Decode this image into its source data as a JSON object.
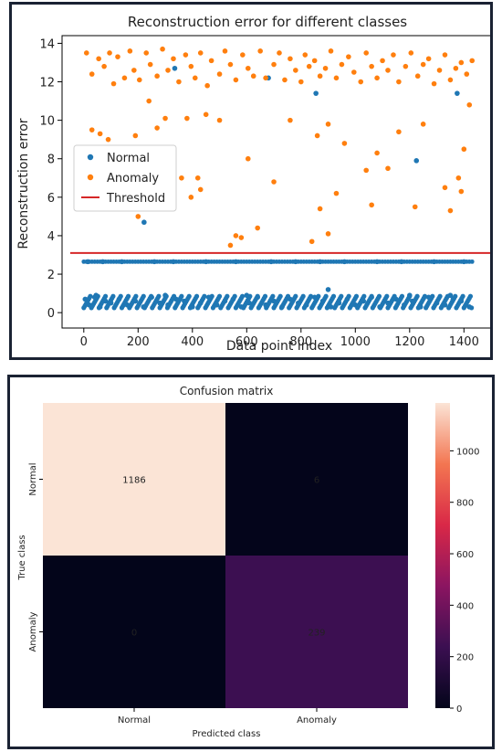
{
  "chart_data": [
    {
      "type": "scatter",
      "title": "Reconstruction error for different classes",
      "xlabel": "Data point index",
      "ylabel": "Reconstruction error",
      "xlim": [
        -80,
        1520
      ],
      "ylim": [
        -0.8,
        14.4
      ],
      "xticks": [
        "0",
        "200",
        "400",
        "600",
        "800",
        "1000",
        "1200",
        "1400"
      ],
      "yticks": [
        "0",
        "2",
        "4",
        "6",
        "8",
        "10",
        "12",
        "14"
      ],
      "grid": false,
      "legend_position": "center-left",
      "legend": [
        "Normal",
        "Anomaly",
        "Threshold"
      ],
      "colors": {
        "normal": "#1f77b4",
        "anomaly": "#ff7f0e",
        "threshold": "#d62728"
      },
      "threshold": {
        "name": "Threshold",
        "value": 3.1,
        "x_range": [
          -50,
          1500
        ]
      },
      "series": [
        {
          "name": "Normal",
          "x": [
            5,
            20,
            40,
            60,
            80,
            100,
            130,
            160,
            190,
            220,
            250,
            280,
            310,
            340,
            370,
            400,
            430,
            460,
            490,
            520,
            550,
            580,
            610,
            640,
            670,
            700,
            730,
            760,
            790,
            820,
            850,
            880,
            910,
            940,
            970,
            1000,
            1030,
            1060,
            1090,
            1120,
            1150,
            1180,
            1210,
            1240,
            1270,
            1300,
            1330,
            1360,
            1390,
            1420,
            15,
            70,
            140,
            260,
            330,
            450,
            560,
            690,
            780,
            870,
            960,
            1080,
            1170,
            1290,
            1400,
            45,
            300,
            600,
            900,
            1200,
            1350,
            222,
            335,
            680,
            855,
            1225,
            1375
          ],
          "y": [
            0.7,
            0.4,
            0.8,
            0.3,
            0.6,
            0.5,
            0.7,
            0.4,
            0.6,
            0.3,
            0.8,
            0.5,
            0.4,
            0.7,
            0.6,
            0.3,
            0.5,
            0.8,
            0.4,
            0.6,
            0.7,
            0.3,
            0.5,
            0.8,
            0.4,
            0.6,
            0.3,
            0.7,
            0.5,
            0.4,
            0.8,
            0.6,
            0.3,
            0.5,
            0.7,
            0.4,
            0.6,
            0.8,
            0.3,
            0.5,
            0.7,
            0.4,
            0.6,
            0.3,
            0.8,
            0.5,
            0.4,
            0.7,
            0.6,
            0.3,
            2.65,
            2.65,
            2.65,
            2.65,
            2.65,
            2.65,
            2.65,
            2.65,
            2.65,
            2.65,
            2.65,
            2.65,
            2.65,
            2.65,
            2.65,
            0.9,
            0.9,
            0.9,
            1.2,
            0.9,
            0.9,
            4.7,
            12.7,
            12.2,
            11.4,
            7.9,
            11.4
          ]
        },
        {
          "name": "Anomaly",
          "x": [
            10,
            30,
            55,
            75,
            95,
            110,
            125,
            150,
            170,
            185,
            205,
            230,
            245,
            270,
            290,
            310,
            330,
            350,
            375,
            395,
            410,
            430,
            455,
            470,
            500,
            520,
            540,
            560,
            585,
            605,
            625,
            650,
            670,
            700,
            720,
            740,
            760,
            780,
            800,
            815,
            830,
            850,
            870,
            890,
            910,
            930,
            950,
            975,
            995,
            1020,
            1040,
            1060,
            1080,
            1100,
            1120,
            1140,
            1160,
            1185,
            1205,
            1230,
            1250,
            1270,
            1290,
            1310,
            1330,
            1350,
            1370,
            1390,
            1410,
            1430,
            30,
            60,
            90,
            140,
            160,
            190,
            200,
            240,
            270,
            300,
            360,
            380,
            395,
            420,
            430,
            450,
            500,
            540,
            560,
            580,
            605,
            640,
            760,
            840,
            860,
            870,
            900,
            930,
            960,
            1060,
            1080,
            1120,
            1160,
            1220,
            1250,
            1330,
            1350,
            1380,
            1400,
            1420,
            200,
            700,
            900,
            1040,
            1390
          ],
          "y": [
            13.5,
            12.4,
            13.2,
            12.8,
            13.5,
            11.9,
            13.3,
            12.2,
            13.6,
            12.6,
            12.1,
            13.5,
            12.9,
            12.3,
            13.7,
            12.6,
            13.2,
            12.0,
            13.4,
            12.8,
            12.2,
            13.5,
            11.8,
            13.1,
            12.4,
            13.6,
            12.9,
            12.1,
            13.4,
            12.7,
            12.3,
            13.6,
            12.2,
            12.9,
            13.5,
            12.1,
            13.2,
            12.6,
            12.0,
            13.4,
            12.8,
            13.1,
            12.3,
            12.7,
            13.6,
            12.2,
            12.9,
            13.3,
            12.5,
            12.0,
            13.5,
            12.8,
            12.2,
            13.1,
            12.6,
            13.4,
            12.0,
            12.8,
            13.5,
            12.3,
            12.9,
            13.2,
            11.9,
            12.6,
            13.4,
            12.1,
            12.7,
            13.0,
            12.4,
            13.1,
            9.5,
            9.3,
            9.0,
            7.9,
            7.8,
            9.2,
            5.0,
            11.0,
            9.6,
            10.1,
            7.0,
            10.1,
            6.0,
            7.0,
            6.4,
            10.3,
            10.0,
            3.5,
            4.0,
            3.9,
            8.0,
            4.4,
            10.0,
            3.7,
            9.2,
            5.4,
            9.8,
            6.2,
            8.8,
            5.6,
            8.3,
            7.5,
            9.4,
            5.5,
            9.8,
            6.5,
            5.3,
            7.0,
            8.5,
            10.8,
            5.7,
            6.8,
            4.1,
            7.4,
            6.3
          ]
        }
      ]
    },
    {
      "type": "heatmap",
      "title": "Confusion matrix",
      "xlabel": "Predicted class",
      "ylabel": "True class",
      "x_categories": [
        "Normal",
        "Anomaly"
      ],
      "y_categories": [
        "Normal",
        "Anomaly"
      ],
      "values": [
        [
          1186,
          6
        ],
        [
          0,
          239
        ]
      ],
      "colorbar": {
        "min": 0,
        "max": 1186,
        "ticks": [
          "0",
          "200",
          "400",
          "600",
          "800",
          "1000"
        ]
      },
      "colors": {
        "high": "#fbe4d6",
        "mid": "#ad1759",
        "low": "#03051a"
      }
    }
  ]
}
